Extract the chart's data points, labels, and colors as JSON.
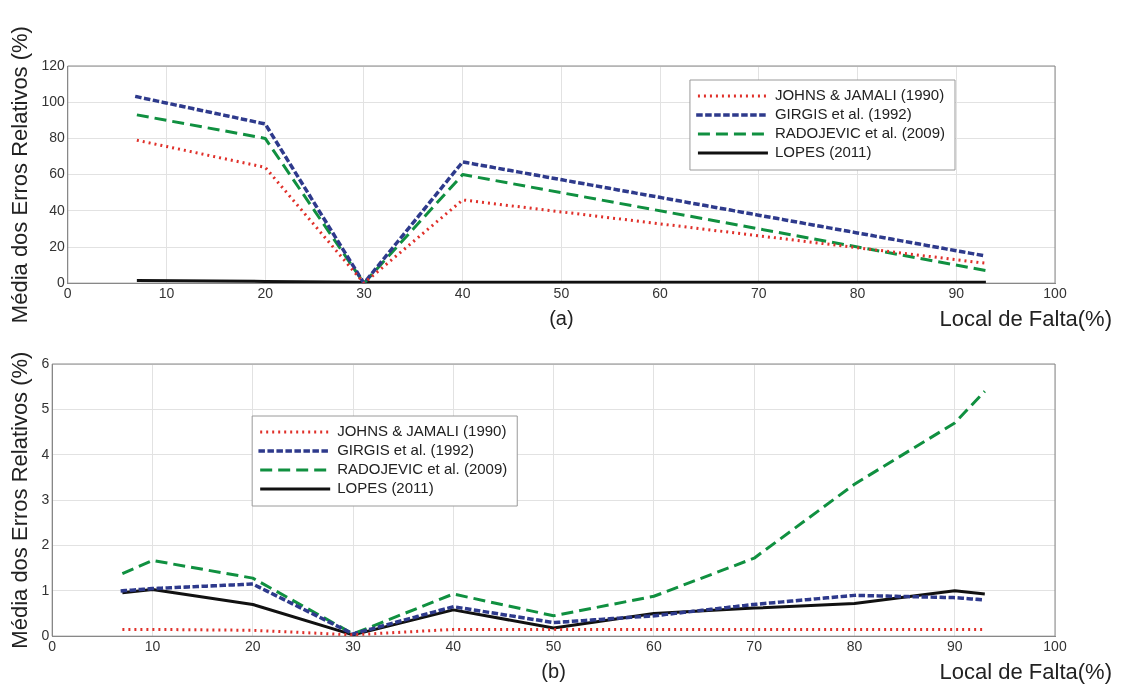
{
  "chart_data": [
    {
      "type": "line",
      "ylabel": "Média dos Erros Relativos (%)",
      "xlabel": "Local de Falta(%)",
      "annotations": [
        "(a)"
      ],
      "xlim": [
        0,
        100
      ],
      "xticks": [
        0,
        10,
        20,
        30,
        40,
        50,
        60,
        70,
        80,
        90,
        100
      ],
      "ylim": [
        0,
        120
      ],
      "yticks": [
        0,
        20,
        40,
        60,
        80,
        100,
        120
      ],
      "grid": true,
      "legend": "top right",
      "marker": "none",
      "series": [
        {
          "name": "JOHNS & JAMALI (1990)",
          "color": "#e0302a",
          "line_style": "dotted",
          "x": [
            7,
            20,
            30,
            40,
            93
          ],
          "values": [
            79,
            64,
            0,
            46,
            11
          ]
        },
        {
          "name": "GIRGIS et al. (1992)",
          "color": "#2e3a8c",
          "line_style": "sparse-dotted",
          "x": [
            7,
            20,
            30,
            40,
            93
          ],
          "values": [
            103,
            88,
            0,
            67,
            15
          ]
        },
        {
          "name": "RADOJEVIC et al. (2009)",
          "color": "#109040",
          "line_style": "dashed",
          "x": [
            7,
            20,
            30,
            40,
            93
          ],
          "values": [
            93,
            80,
            0,
            60,
            7
          ]
        },
        {
          "name": "LOPES (2011)",
          "color": "#111111",
          "line_style": "solid",
          "x": [
            7,
            20,
            30,
            40,
            93
          ],
          "values": [
            1.5,
            1,
            0.5,
            0.5,
            0.5
          ]
        }
      ]
    },
    {
      "type": "line",
      "ylabel": "Média dos Erros Relativos (%)",
      "xlabel": "Local de Falta(%)",
      "annotations": [
        "(b)"
      ],
      "xlim": [
        0,
        100
      ],
      "xticks": [
        0,
        10,
        20,
        30,
        40,
        50,
        60,
        70,
        80,
        90,
        100
      ],
      "ylim": [
        0,
        6
      ],
      "yticks": [
        0,
        1,
        2,
        3,
        4,
        5,
        6
      ],
      "grid": true,
      "legend": "top left",
      "marker": "none",
      "x": [
        7,
        10,
        20,
        30,
        40,
        50,
        60,
        70,
        80,
        90,
        93
      ],
      "series": [
        {
          "name": "JOHNS & JAMALI (1990)",
          "color": "#e0302a",
          "line_style": "dotted",
          "values": [
            0.15,
            0.15,
            0.13,
            0.03,
            0.15,
            0.15,
            0.15,
            0.15,
            0.15,
            0.15,
            0.15
          ]
        },
        {
          "name": "GIRGIS et al. (1992)",
          "color": "#2e3a8c",
          "line_style": "sparse-dotted",
          "values": [
            1.0,
            1.05,
            1.15,
            0.05,
            0.65,
            0.3,
            0.45,
            0.7,
            0.9,
            0.85,
            0.8
          ]
        },
        {
          "name": "RADOJEVIC et al. (2009)",
          "color": "#109040",
          "line_style": "dashed",
          "values": [
            1.38,
            1.67,
            1.28,
            0.05,
            0.93,
            0.45,
            0.88,
            1.72,
            3.35,
            4.7,
            5.4
          ]
        },
        {
          "name": "LOPES (2011)",
          "color": "#111111",
          "line_style": "solid",
          "values": [
            0.96,
            1.03,
            0.7,
            0.03,
            0.58,
            0.18,
            0.5,
            0.62,
            0.72,
            1.0,
            0.93
          ]
        }
      ]
    }
  ]
}
